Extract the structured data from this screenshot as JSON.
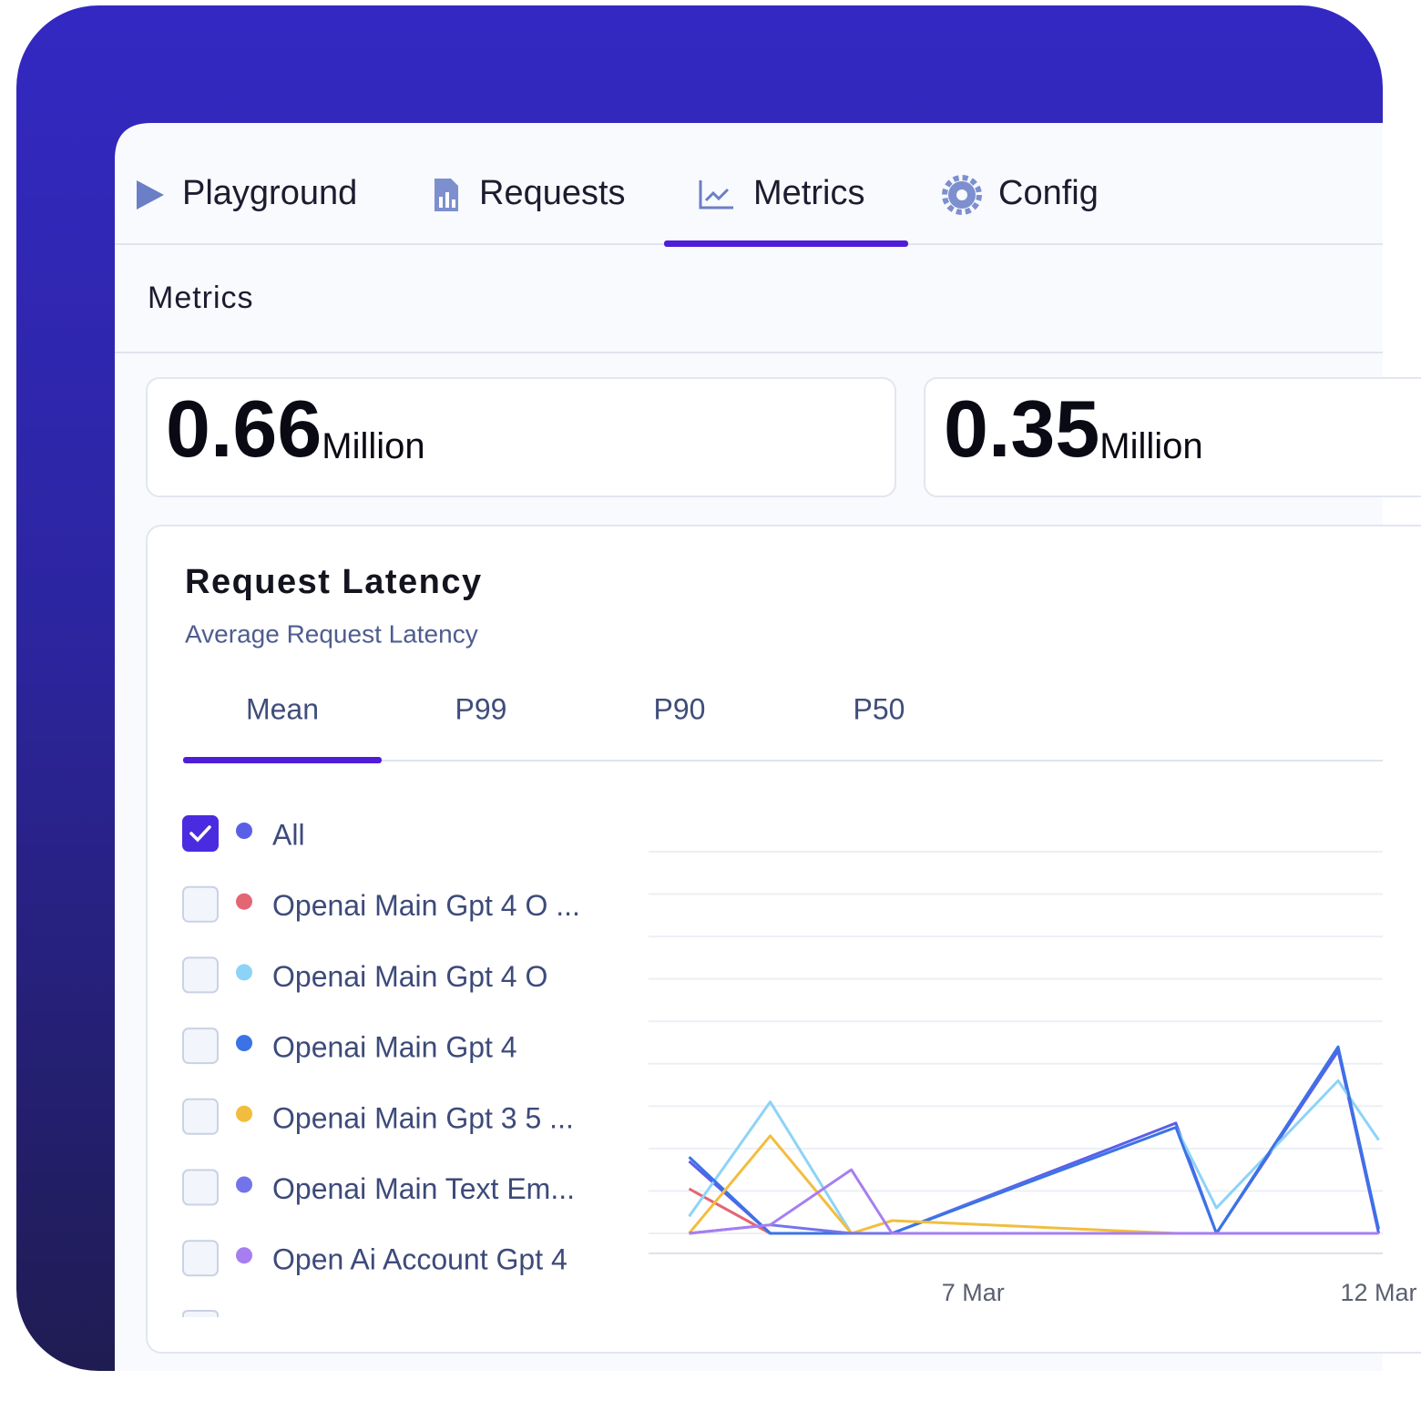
{
  "nav": {
    "tabs": [
      "Playground",
      "Requests",
      "Metrics",
      "Config"
    ],
    "active": 2
  },
  "header": {
    "title": "Metrics"
  },
  "stats": [
    {
      "value": "0.66",
      "unit": "Million"
    },
    {
      "value": "0.35",
      "unit": "Million"
    }
  ],
  "latency_card": {
    "title": "Request Latency",
    "subtitle": "Average Request Latency",
    "tabs": [
      "Mean",
      "P99",
      "P90",
      "P50"
    ],
    "active_tab": 0
  },
  "chart_data": {
    "type": "line",
    "x": [
      0,
      2,
      4,
      5,
      12,
      13,
      16,
      17
    ],
    "xlim": [
      -1,
      17.1
    ],
    "xticks": [
      {
        "value": 7,
        "label": "7 Mar"
      },
      {
        "value": 17,
        "label": "12 Mar"
      }
    ],
    "ylim": [
      0,
      9
    ],
    "yticks": [
      0,
      1,
      2,
      3,
      4,
      5,
      6,
      7,
      8,
      9
    ],
    "grid": true,
    "series": [
      {
        "name": "All",
        "color": "#5b5fe8",
        "checked": true,
        "values": [
          1.7,
          0,
          0,
          0,
          2.6,
          0,
          4.3,
          0
        ]
      },
      {
        "name": "Openai Main Gpt 4 O ...",
        "color": "#e36675",
        "checked": false,
        "values": [
          1.05,
          0,
          0,
          0,
          0,
          0,
          0,
          0
        ]
      },
      {
        "name": "Openai Main Gpt 4 O",
        "color": "#8dd3f7",
        "checked": false,
        "values": [
          0.4,
          3.1,
          0,
          0,
          2.5,
          0.6,
          3.6,
          2.2
        ]
      },
      {
        "name": "Openai Main Gpt 4",
        "color": "#3b73e6",
        "checked": false,
        "values": [
          1.8,
          0,
          0,
          0,
          2.5,
          0,
          4.4,
          0.1
        ]
      },
      {
        "name": "Openai Main Gpt 3 5 ...",
        "color": "#f2bd3f",
        "checked": false,
        "values": [
          0,
          2.3,
          0,
          0.3,
          0,
          0,
          0,
          0
        ]
      },
      {
        "name": "Openai Main Text Em...",
        "color": "#7474ea",
        "checked": false,
        "values": [
          0,
          0.2,
          0,
          0,
          0,
          0,
          0,
          0
        ]
      },
      {
        "name": "Open Ai Account Gpt 4",
        "color": "#a67ef0",
        "checked": false,
        "values": [
          0,
          0.2,
          1.5,
          0,
          0,
          0,
          0,
          0
        ]
      }
    ]
  }
}
